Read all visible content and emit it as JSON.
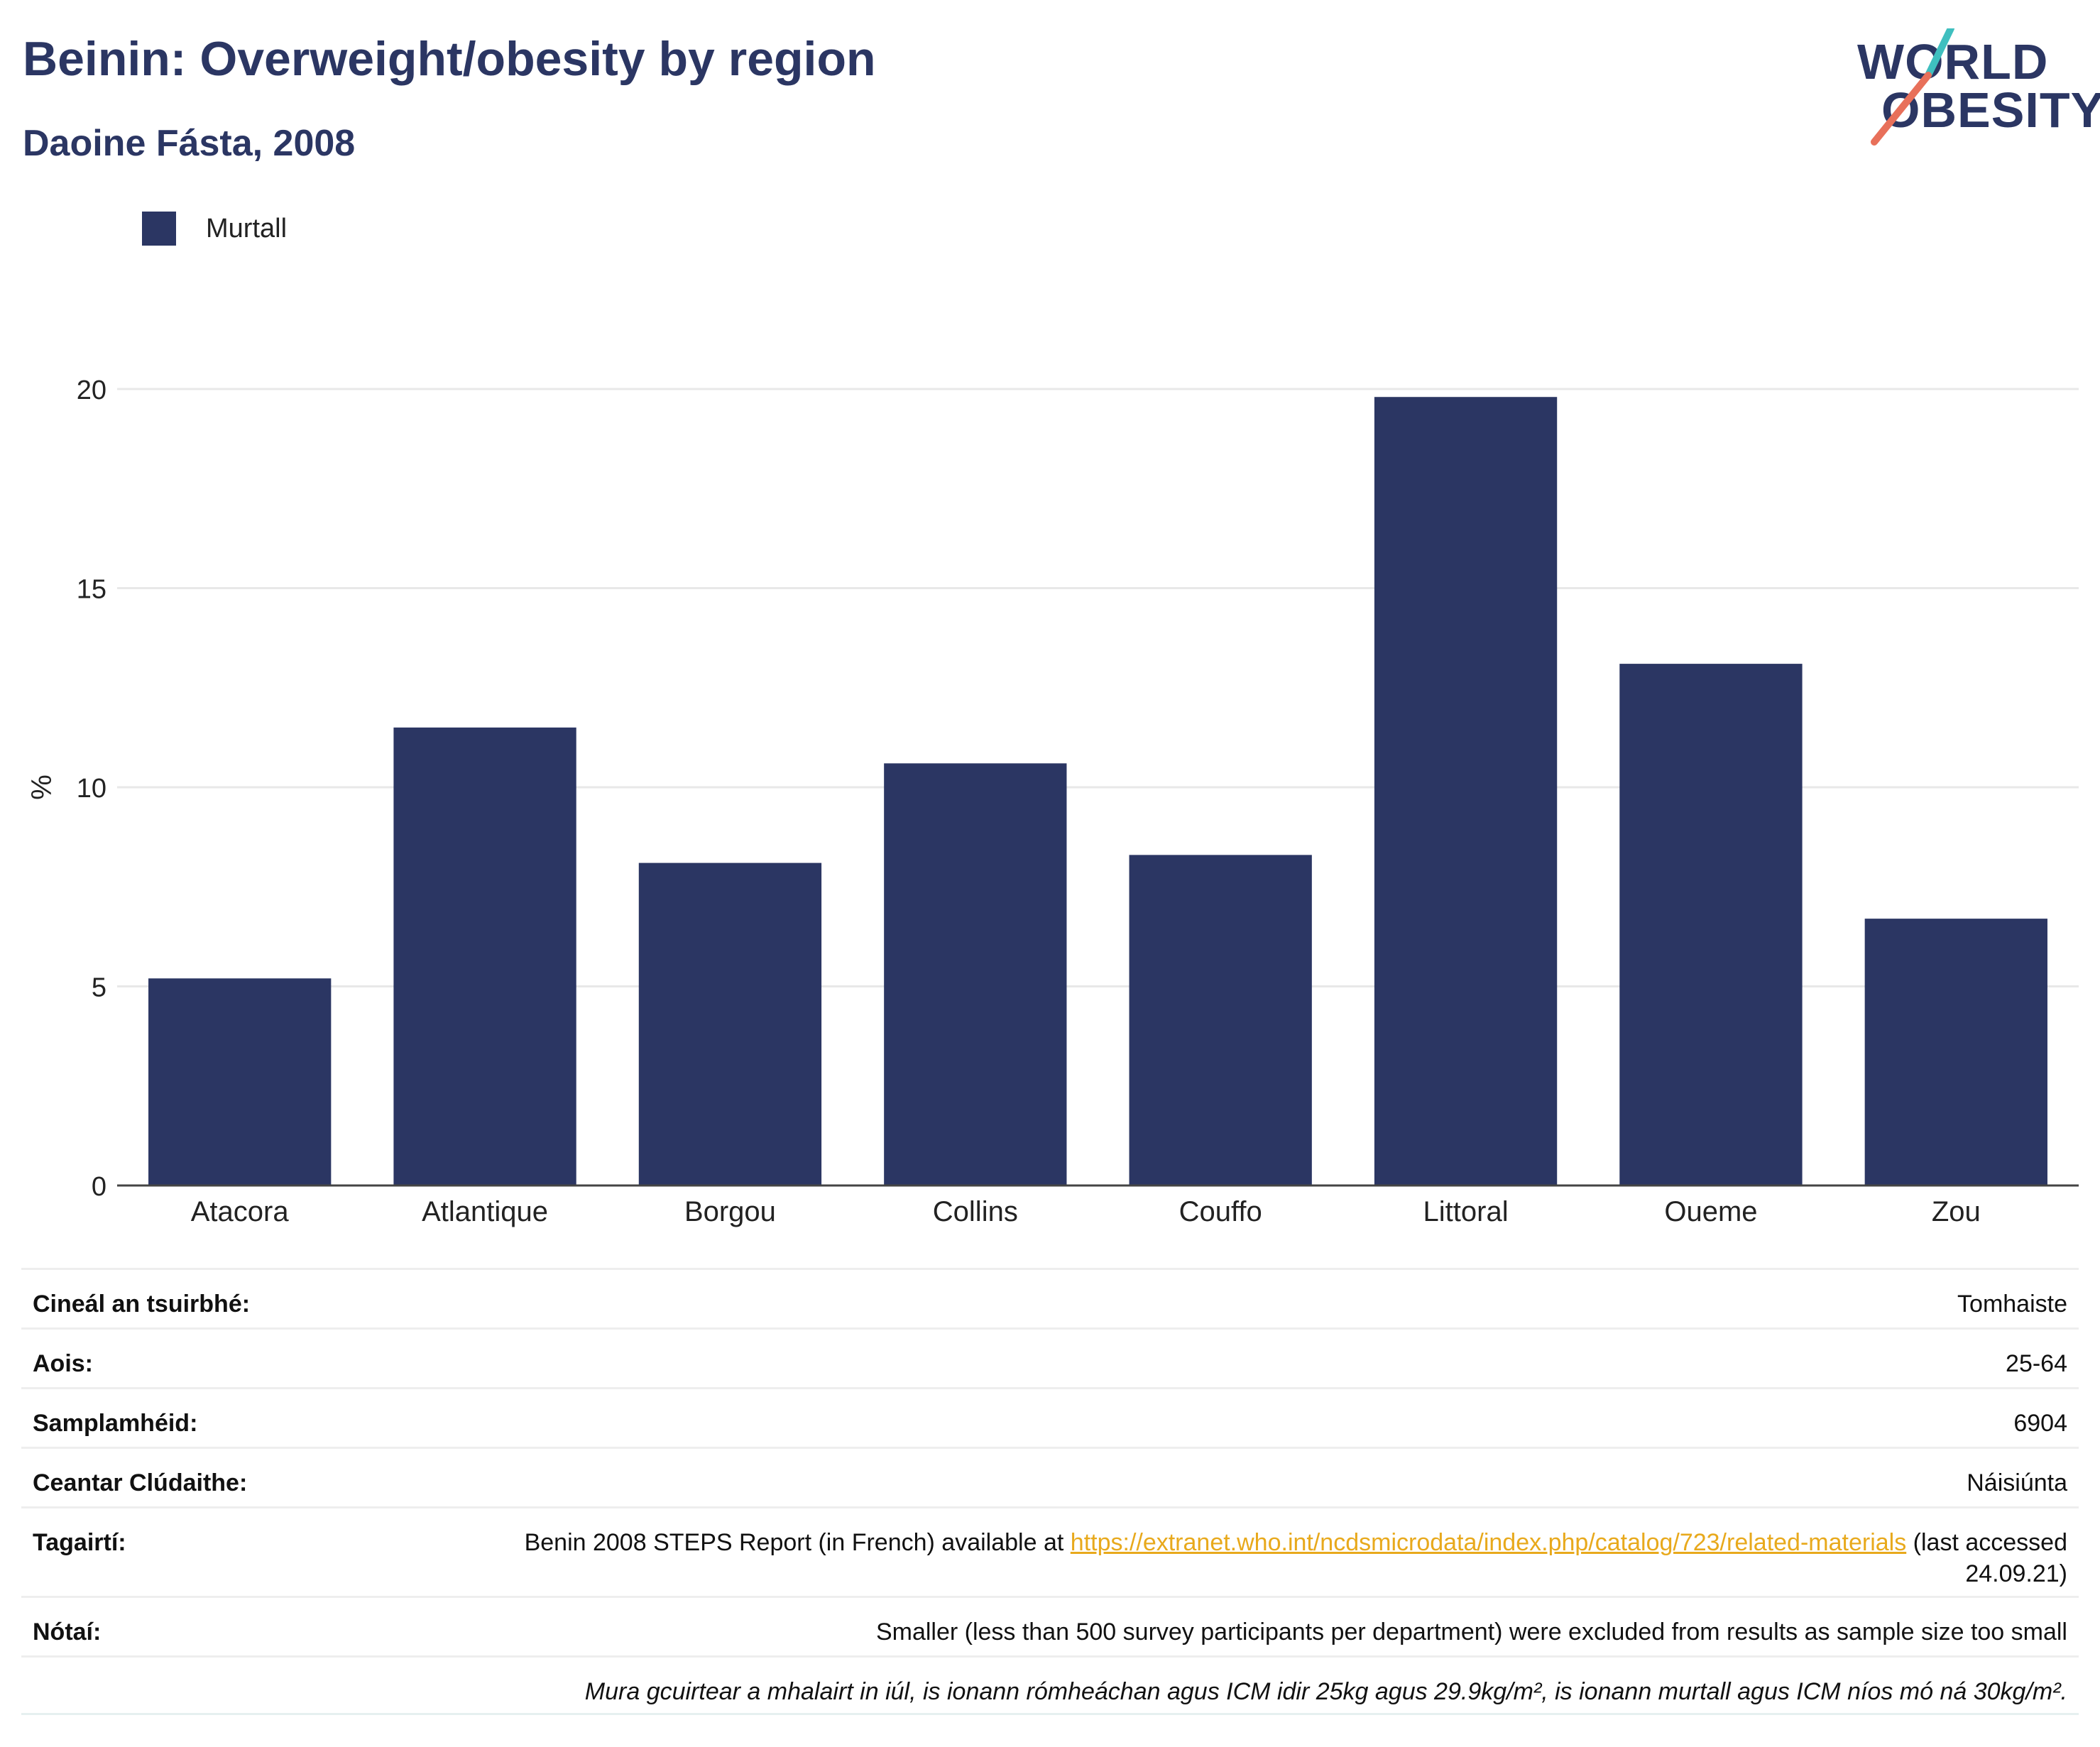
{
  "header": {
    "title": "Beinin: Overweight/obesity by region",
    "subtitle": "Daoine Fásta, 2008"
  },
  "logo": {
    "line1": "WORLD",
    "line2": "OBESITY",
    "colors": {
      "navy": "#2b3663",
      "teal": "#3fbfbf",
      "coral": "#e8705a"
    }
  },
  "chart_data": {
    "type": "bar",
    "categories": [
      "Atacora",
      "Atlantique",
      "Borgou",
      "Collins",
      "Couffo",
      "Littoral",
      "Oueme",
      "Zou"
    ],
    "series": [
      {
        "name": "Murtall",
        "values": [
          5.2,
          11.5,
          8.1,
          10.6,
          8.3,
          19.8,
          13.1,
          6.7
        ],
        "color": "#2b3663"
      }
    ],
    "ylabel": "%",
    "ylim": [
      0,
      20
    ],
    "yticks": [
      0,
      5,
      10,
      15,
      20
    ],
    "grid": true,
    "legend": "top-left"
  },
  "info": {
    "rows": [
      {
        "label": "Cineál an tsuirbhé:",
        "value": "Tomhaiste"
      },
      {
        "label": "Aois:",
        "value": "25-64"
      },
      {
        "label": "Samplamhéid:",
        "value": "6904"
      },
      {
        "label": "Ceantar Clúdaithe:",
        "value": "Náisiúnta"
      }
    ],
    "references_label": "Tagairtí:",
    "references_prefix": "Benin 2008 STEPS Report (in French) available at",
    "references_link": "https://extranet.who.int/ncdsmicrodata/index.php/catalog/723/related-materials",
    "references_suffix": "(last accessed 24.09.21)",
    "notes_label": "Nótaí:",
    "notes_value": "Smaller (less than 500 survey participants per department) were excluded from results as sample size too small",
    "footnote": "Mura gcuirtear a mhalairt in iúl, is ionann rómheáchan agus ICM idir 25kg agus 29.9kg/m², is ionann murtall agus ICM níos mó ná 30kg/m²."
  }
}
